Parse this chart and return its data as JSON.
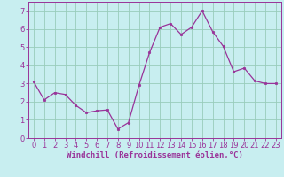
{
  "x": [
    0,
    1,
    2,
    3,
    4,
    5,
    6,
    7,
    8,
    9,
    10,
    11,
    12,
    13,
    14,
    15,
    16,
    17,
    18,
    19,
    20,
    21,
    22,
    23
  ],
  "y": [
    3.1,
    2.1,
    2.5,
    2.4,
    1.8,
    1.4,
    1.5,
    1.55,
    0.5,
    0.85,
    2.9,
    4.7,
    6.1,
    6.3,
    5.7,
    6.1,
    7.0,
    5.85,
    5.05,
    3.65,
    3.85,
    3.15,
    3.0,
    3.0
  ],
  "line_color": "#993399",
  "marker": "o",
  "marker_size": 1.8,
  "bg_color": "#c8eef0",
  "grid_color": "#99ccbb",
  "xlabel": "Windchill (Refroidissement éolien,°C)",
  "xlim": [
    -0.5,
    23.5
  ],
  "ylim": [
    0,
    7.5
  ],
  "yticks": [
    0,
    1,
    2,
    3,
    4,
    5,
    6,
    7
  ],
  "xticks": [
    0,
    1,
    2,
    3,
    4,
    5,
    6,
    7,
    8,
    9,
    10,
    11,
    12,
    13,
    14,
    15,
    16,
    17,
    18,
    19,
    20,
    21,
    22,
    23
  ],
  "xlabel_fontsize": 6.5,
  "tick_fontsize": 6.0,
  "axis_color": "#993399",
  "spine_color": "#993399"
}
